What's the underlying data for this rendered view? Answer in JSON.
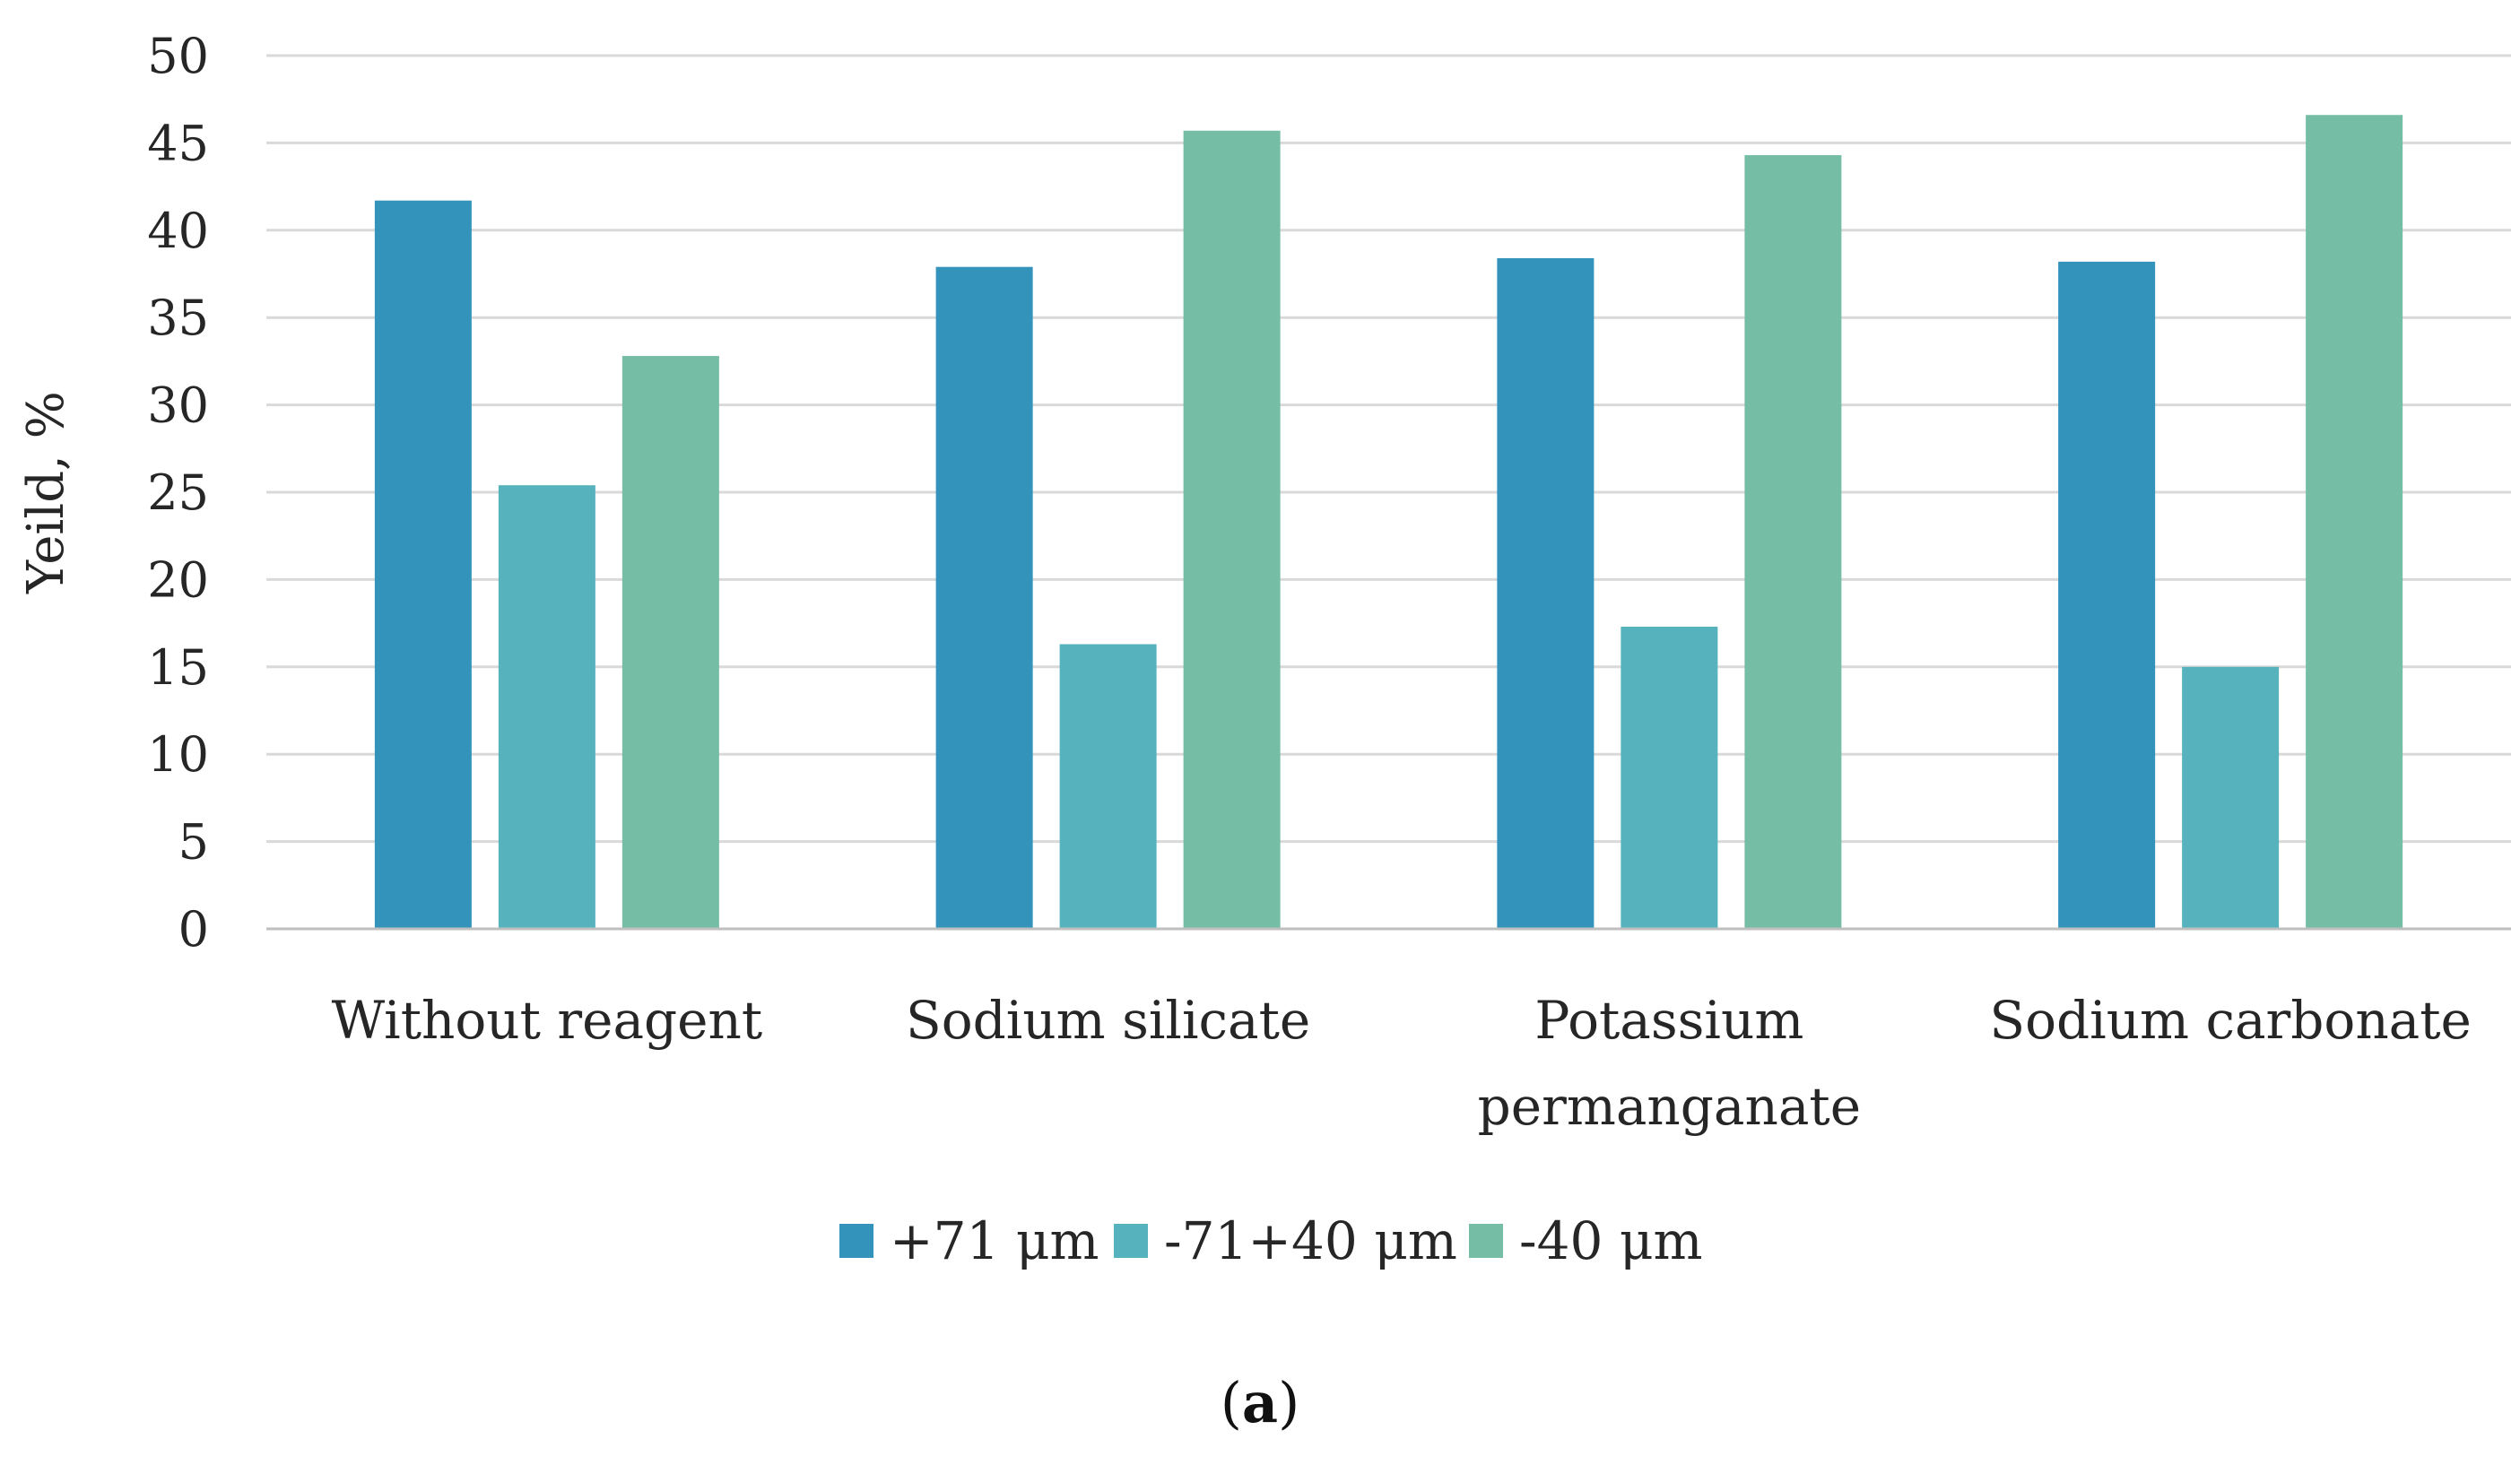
{
  "chart_data": {
    "type": "bar",
    "title": "",
    "xlabel": "",
    "ylabel": "Yeild, %",
    "ylim": [
      0,
      50
    ],
    "yticks": [
      "0",
      "5",
      "10",
      "15",
      "20",
      "25",
      "30",
      "35",
      "40",
      "45",
      "50"
    ],
    "grid": true,
    "legend_position": "bottom",
    "categories": [
      [
        "Without reagent"
      ],
      [
        "Sodium silicate"
      ],
      [
        "Potassium",
        "permanganate"
      ],
      [
        "Sodium carbonate"
      ]
    ],
    "series": [
      {
        "name": "+71 μm",
        "color": "#3393BB",
        "values": [
          41.7,
          37.9,
          38.4,
          38.2
        ]
      },
      {
        "name": "-71+40 μm",
        "color": "#56B3BE",
        "values": [
          25.4,
          16.3,
          17.3,
          15.0
        ]
      },
      {
        "name": "-40 μm",
        "color": "#76BDA6",
        "values": [
          32.8,
          45.7,
          44.3,
          46.6
        ]
      }
    ]
  },
  "caption": {
    "open": "(",
    "letter": "a",
    "close": ")"
  }
}
